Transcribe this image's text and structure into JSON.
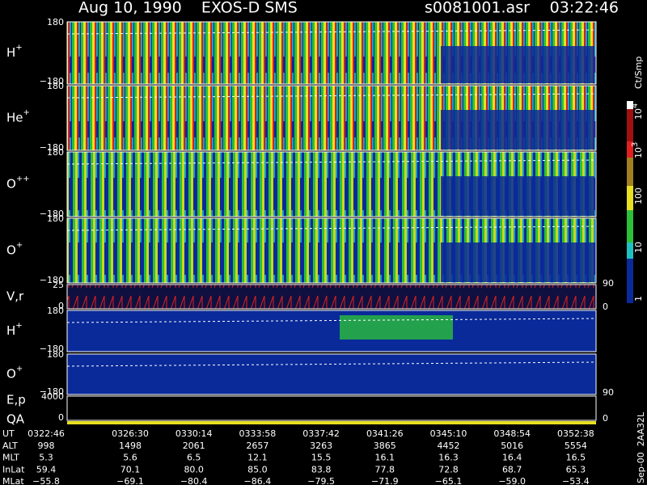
{
  "header": {
    "title": "Aug 10, 1990    EXOS-D SMS",
    "file": "s0081001.asr",
    "time": "03:22:46"
  },
  "panels": [
    {
      "label": "H",
      "sup": "+",
      "yticks": [
        "180",
        "−180"
      ]
    },
    {
      "label": "He",
      "sup": "+",
      "yticks": [
        "180",
        "−180"
      ]
    },
    {
      "label": "O",
      "sup": "++",
      "yticks": [
        "180",
        "−180"
      ]
    },
    {
      "label": "O",
      "sup": "+",
      "yticks": [
        "180",
        "−180"
      ]
    },
    {
      "label": "V,r",
      "yticks": [
        "25",
        "0"
      ],
      "right": [
        "90",
        "0"
      ]
    },
    {
      "label": "H",
      "sup": "+",
      "yticks": [
        "180",
        "−180"
      ]
    },
    {
      "label": "O",
      "sup": "+",
      "yticks": [
        "180",
        "−180"
      ],
      "right": [
        "90"
      ]
    },
    {
      "label": "E,p",
      "label2": "QA",
      "yticks": [
        "4000",
        "0"
      ],
      "right": [
        "0"
      ]
    }
  ],
  "colorbar": {
    "title": "Ct/Smp",
    "ticks": [
      {
        "base": "10",
        "exp": "4"
      },
      {
        "base": "10",
        "exp": "3"
      },
      {
        "base": "100"
      },
      {
        "base": "10"
      },
      {
        "base": "1"
      }
    ]
  },
  "table": {
    "rows": [
      [
        "UT",
        "0322:46",
        "0326:30",
        "0330:14",
        "0333:58",
        "0337:42",
        "0341:26",
        "0345:10",
        "0348:54",
        "0352:38"
      ],
      [
        "ALT",
        "998",
        "1498",
        "2061",
        "2657",
        "3263",
        "3865",
        "4452",
        "5016",
        "5554"
      ],
      [
        "MLT",
        "5.3",
        "5.6",
        "6.5",
        "12.1",
        "15.5",
        "16.1",
        "16.3",
        "16.4",
        "16.5"
      ],
      [
        "InLat",
        "59.4",
        "70.1",
        "80.0",
        "85.0",
        "83.8",
        "77.8",
        "72.8",
        "68.7",
        "65.3"
      ],
      [
        "MLat",
        "−55.8",
        "−69.1",
        "−80.4",
        "−86.4",
        "−79.5",
        "−71.9",
        "−65.1",
        "−59.0",
        "−53.4"
      ]
    ]
  },
  "footer": "Sep-00  2AA32L"
}
